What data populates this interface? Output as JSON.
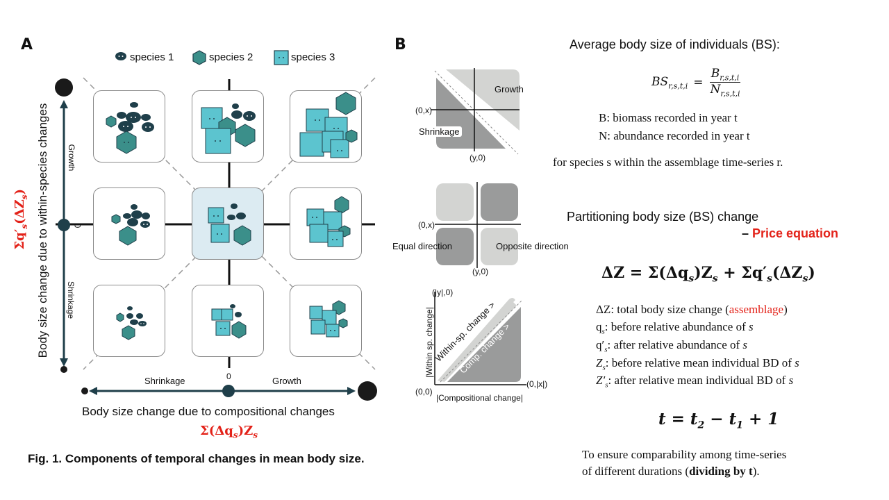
{
  "panel_a": {
    "letter": "A",
    "legend": {
      "species1": "species 1",
      "species2": "species 2",
      "species3": "species 3"
    },
    "y_axis_title": "Body size change due to within-species changes",
    "y_axis_formula": "Σq′s(ΔZs)",
    "y_growth": "Growth",
    "y_shrinkage": "Shrinkage",
    "y_zero": "0",
    "x_shrinkage": "Shrinkage",
    "x_growth": "Growth",
    "x_zero": "0",
    "x_axis_title": "Body size change due to compositional changes",
    "x_axis_formula": "Σ(Δqs)Zs",
    "caption": "Fig. 1. Components of temporal changes in mean body size."
  },
  "panel_b": {
    "letter": "B",
    "plot1": {
      "growth": "Growth",
      "shrinkage": "Shrinkage",
      "y_lab": "(0,x)",
      "x_lab": "(y,0)"
    },
    "plot2": {
      "equal": "Equal direction",
      "opposite": "Opposite direction",
      "y_lab": "(0,x)",
      "x_lab": "(y,0)"
    },
    "plot3": {
      "within": "Within-sp. change >",
      "comp": "Comp. change >",
      "y_axis": "|Within sp. change|",
      "x_axis": "|Compositional change|",
      "top_lab": "(|y|,0)",
      "right_lab": "(0,|x|)",
      "origin": "(0,0)"
    }
  },
  "right": {
    "title1": "Average body size of individuals (BS):",
    "bs_lhs": "BS",
    "bs_lhs_sub": "r,s,t,i",
    "bs_num": "B",
    "bs_num_sub": "r,s,t,i",
    "bs_den": "N",
    "bs_den_sub": "r,s,t,i",
    "b_def": "B: biomass recorded  in year t",
    "n_def": "N: abundance recorded  in year t",
    "species_line": "for species s within the assemblage  time-series r.",
    "title2": "Partitioning body size (BS) change",
    "price_prefix": "– ",
    "price": "Price equation",
    "main_eq": "ΔZ = Σ(Δqs)Zs + Σq′s(ΔZs)",
    "defs": {
      "dz_prefix": "ΔZ: total body size change (",
      "dz_red": "assemblage",
      "dz_suffix": ")",
      "q": "qs: before relative abundance of s",
      "qp": "q′s: after relative abundance of s",
      "z": "Zs: before relative mean individual BD of s",
      "zp": "Z′s: after relative mean individual BD of s"
    },
    "t_eq": "t = t2 − t1 + 1",
    "footer1": "To ensure comparability among time-series",
    "footer2_pre": "of different durations (",
    "footer2_bold": "dividing  by t",
    "footer2_post": ")."
  },
  "colors": {
    "teal_fill": "#3b8f8a",
    "teal_light": "#5cc4cf",
    "dark": "#1f3f4a",
    "red": "#e32219",
    "center_cell": "#dcebf2"
  }
}
